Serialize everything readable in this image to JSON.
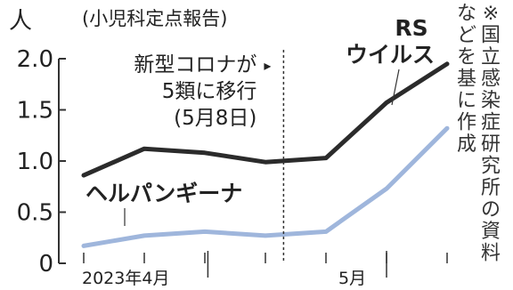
{
  "chart_data": {
    "type": "line",
    "title": "",
    "subtitle": "(小児科定点報告)",
    "ylabel": "人",
    "ylim": [
      0,
      2.0
    ],
    "yticks": [
      "0",
      "0.5",
      "1.0",
      "1.5",
      "2.0"
    ],
    "grid": false,
    "xtick_labels": [
      "2023年4月",
      "5月"
    ],
    "series": [
      {
        "name": "RS\nウイルス",
        "color": "#2b2b2b",
        "values": [
          0.86,
          1.12,
          1.08,
          0.99,
          1.03,
          1.57,
          1.95
        ]
      },
      {
        "name": "ヘルパンギーナ",
        "color": "#9fb6dc",
        "values": [
          0.17,
          0.27,
          0.31,
          0.27,
          0.31,
          0.73,
          1.32
        ]
      }
    ],
    "annotation": {
      "text": "新型コロナが\n5類に移行\n(5月8日)",
      "arrow": "▸",
      "at_index": 3.3
    },
    "source_note": "※国立感染症研究所の資料などを基に作成"
  }
}
